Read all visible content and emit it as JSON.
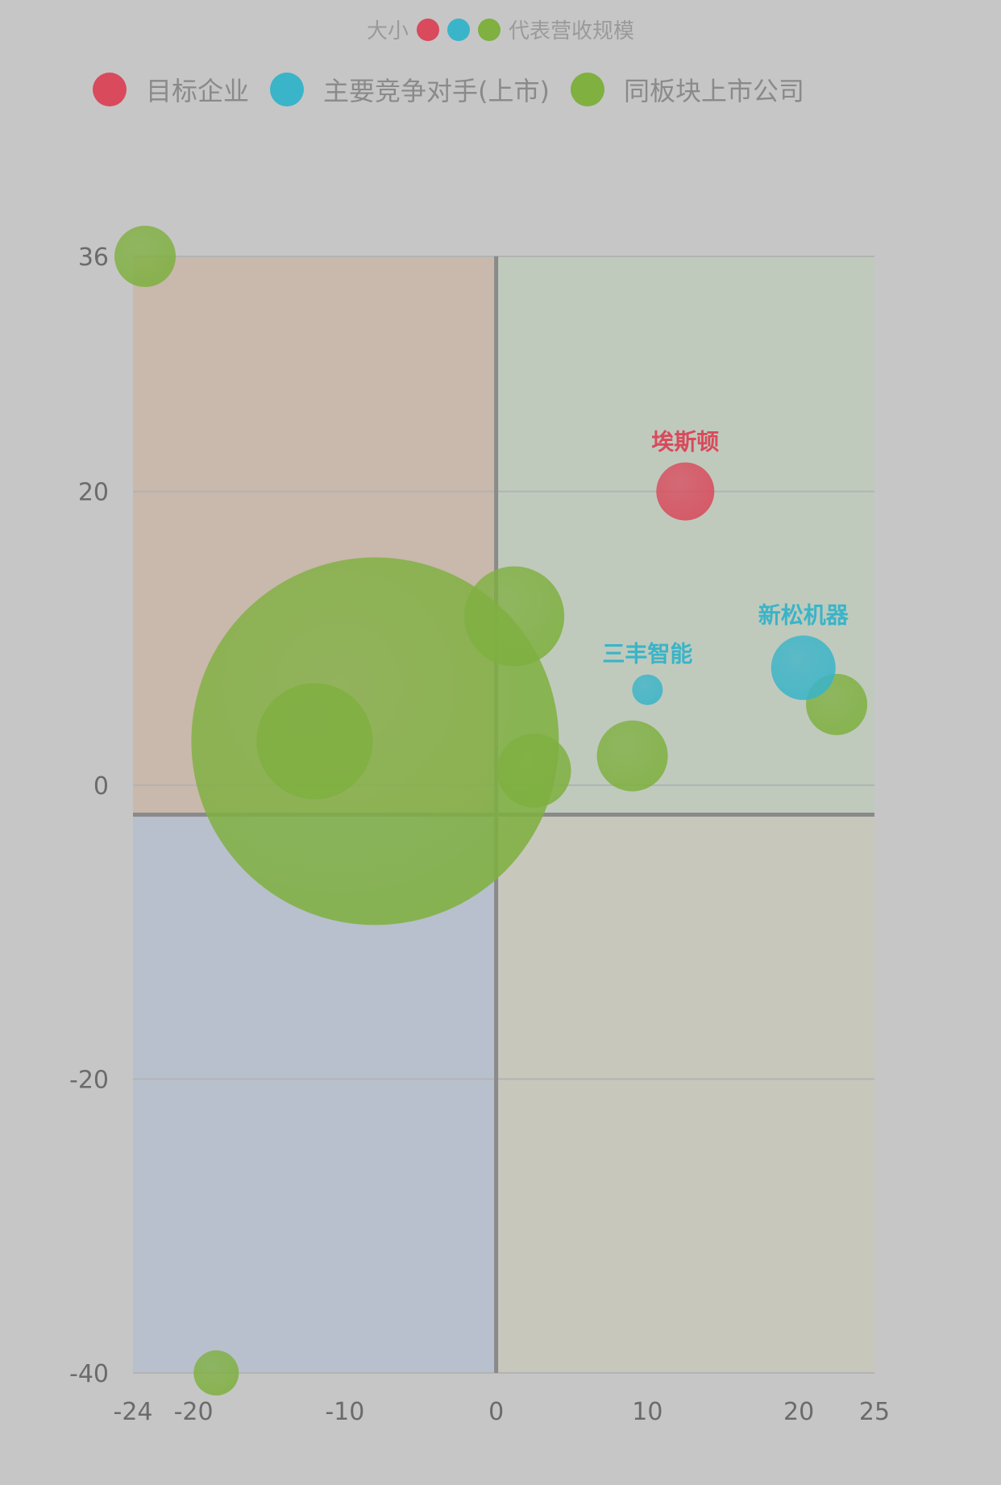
{
  "top_legend": {
    "left_text": "大小",
    "right_text": "代表营收规模",
    "colors": [
      "#d94a5c",
      "#3ab4c8",
      "#7fb040"
    ]
  },
  "chart_data": {
    "type": "scatter",
    "title": "",
    "xlabel": "",
    "ylabel": "",
    "xlim": [
      -24,
      25
    ],
    "ylim": [
      -40,
      36
    ],
    "x_ticks": [
      -24,
      -20,
      -10,
      0,
      10,
      20,
      25
    ],
    "y_ticks": [
      -40,
      -20,
      0,
      20,
      36
    ],
    "x_tick_labels": [
      "-24",
      "-20",
      "-10",
      "0",
      "10",
      "20",
      "25"
    ],
    "y_tick_labels": [
      "-40",
      "-20",
      "0",
      "20",
      "36"
    ],
    "grid": true,
    "legend_position": "top",
    "quadrant_split": {
      "x": 0,
      "y": -2
    },
    "quadrant_colors": {
      "top_left": "#c9b8ac",
      "top_right": "#bfcabd",
      "bottom_left": "#b7c0cc",
      "bottom_right": "#c8c7bc"
    },
    "series": [
      {
        "name": "目标企业",
        "color": "#d94a5c",
        "points": [
          {
            "x": 12.5,
            "y": 20,
            "size": 36,
            "label": "埃斯顿"
          }
        ]
      },
      {
        "name": "主要竞争对手(上市)",
        "color": "#3ab4c8",
        "points": [
          {
            "x": 10,
            "y": 6.5,
            "size": 19,
            "label": "三丰智能"
          },
          {
            "x": 20.3,
            "y": 8,
            "size": 40,
            "label": "新松机器"
          }
        ]
      },
      {
        "name": "同板块上市公司",
        "color": "#7fb040",
        "points": [
          {
            "x": -23.2,
            "y": 36,
            "size": 38
          },
          {
            "x": -8,
            "y": 3,
            "size": 228
          },
          {
            "x": -12,
            "y": 3,
            "size": 72
          },
          {
            "x": 1.2,
            "y": 11.5,
            "size": 62
          },
          {
            "x": 2.5,
            "y": 1,
            "size": 46
          },
          {
            "x": 9,
            "y": 2,
            "size": 44
          },
          {
            "x": 22.5,
            "y": 5.5,
            "size": 38
          },
          {
            "x": -18.5,
            "y": -40,
            "size": 28
          }
        ]
      }
    ]
  }
}
